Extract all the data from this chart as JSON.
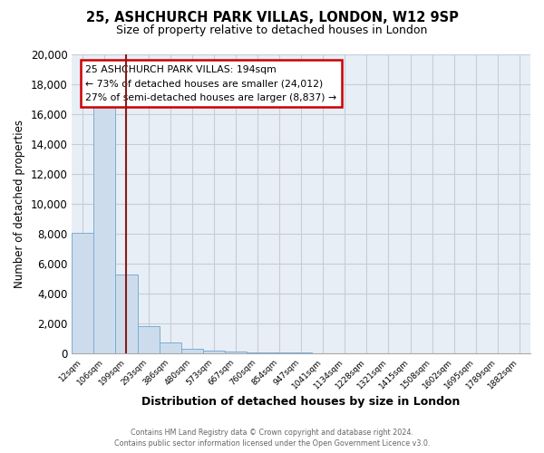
{
  "title": "25, ASHCHURCH PARK VILLAS, LONDON, W12 9SP",
  "subtitle": "Size of property relative to detached houses in London",
  "xlabel": "Distribution of detached houses by size in London",
  "ylabel": "Number of detached properties",
  "bar_labels": [
    "12sqm",
    "106sqm",
    "199sqm",
    "293sqm",
    "386sqm",
    "480sqm",
    "573sqm",
    "667sqm",
    "760sqm",
    "854sqm",
    "947sqm",
    "1041sqm",
    "1134sqm",
    "1228sqm",
    "1321sqm",
    "1415sqm",
    "1508sqm",
    "1602sqm",
    "1695sqm",
    "1789sqm",
    "1882sqm"
  ],
  "bar_values": [
    8100,
    16500,
    5300,
    1850,
    750,
    300,
    230,
    130,
    100,
    80,
    60,
    50,
    40,
    30,
    25,
    20,
    15,
    12,
    10,
    8,
    5
  ],
  "bar_color": "#cddcec",
  "bar_edge_color": "#7aadd4",
  "marker_color": "#8b1a1a",
  "annotation_lines": [
    "25 ASHCHURCH PARK VILLAS: 194sqm",
    "← 73% of detached houses are smaller (24,012)",
    "27% of semi-detached houses are larger (8,837) →"
  ],
  "ylim": [
    0,
    20000
  ],
  "yticks": [
    0,
    2000,
    4000,
    6000,
    8000,
    10000,
    12000,
    14000,
    16000,
    18000,
    20000
  ],
  "footer_line1": "Contains HM Land Registry data © Crown copyright and database right 2024.",
  "footer_line2": "Contains public sector information licensed under the Open Government Licence v3.0.",
  "plot_bg_color": "#e8eef5",
  "background_color": "#ffffff",
  "grid_color": "#c5cdd8"
}
